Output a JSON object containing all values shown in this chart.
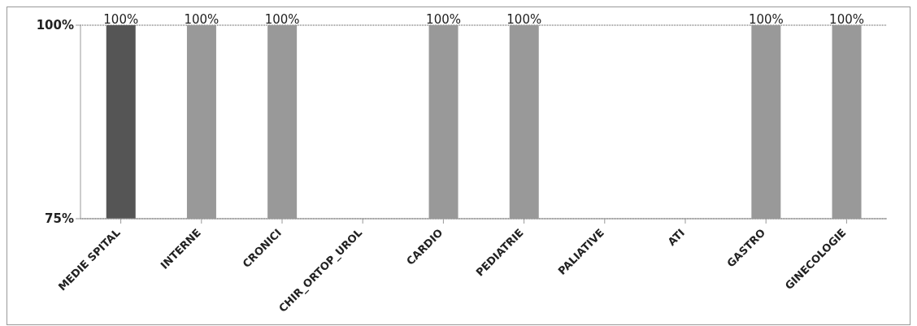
{
  "chart_data": {
    "type": "bar",
    "categories": [
      "MEDIE SPITAL",
      "INTERNE",
      "CRONICI",
      "CHIR_ORTOP_UROL",
      "CARDIO",
      "PEDIATRIE",
      "PALIATIVE",
      "ATI",
      "GASTRO",
      "GINECOLOGIE"
    ],
    "values": [
      100,
      100,
      100,
      null,
      100,
      100,
      null,
      null,
      100,
      100
    ],
    "colors": [
      "#555555",
      "#999999",
      "#999999",
      "#999999",
      "#999999",
      "#999999",
      "#999999",
      "#999999",
      "#999999",
      "#999999"
    ],
    "value_labels": [
      "100%",
      "100%",
      "100%",
      null,
      "100%",
      "100%",
      null,
      null,
      "100%",
      "100%"
    ],
    "ylim": [
      75,
      100
    ],
    "yticks": [
      {
        "value": 75,
        "label": "75%"
      },
      {
        "value": 100,
        "label": "100%"
      }
    ],
    "grid": "y"
  }
}
